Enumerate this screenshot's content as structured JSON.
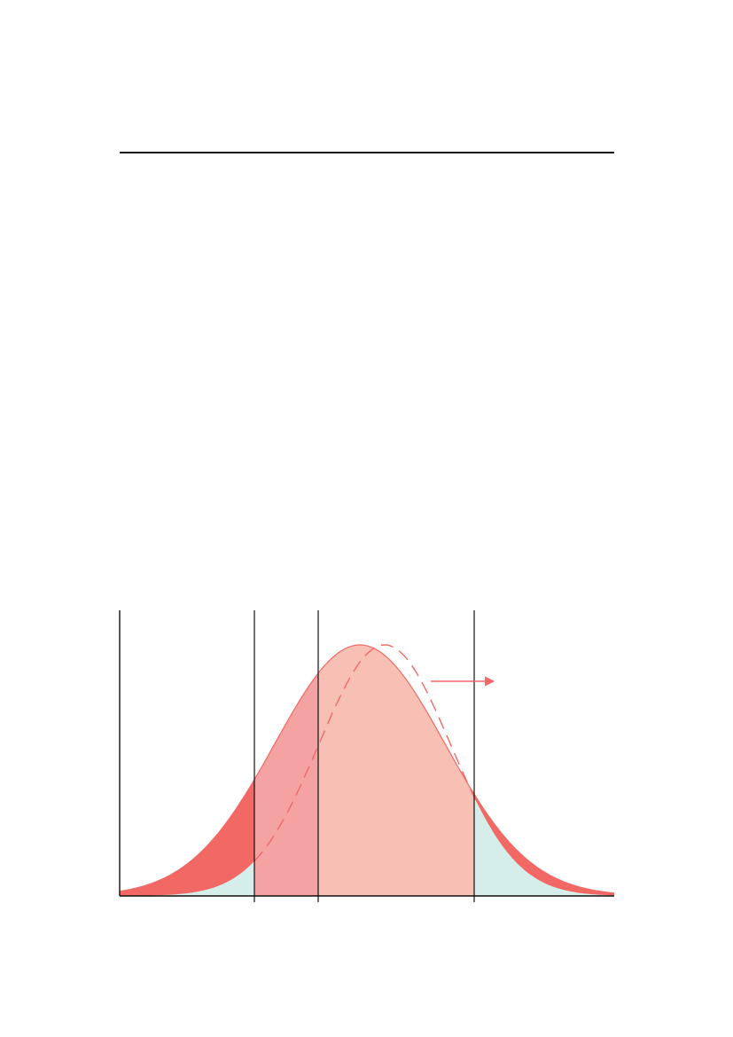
{
  "colors": {
    "rule": "#111111",
    "axis": "#111111",
    "curve_stroke": "#ee6a66",
    "outer_band": "#f26865",
    "left_tail_fill": "#d6eeea",
    "right_tail_fill": "#d6eeea",
    "low_band_fill": "#f4a3a2",
    "middle_fill": "#f8bfb5",
    "shift_arrow": "#ee6a66"
  },
  "distribution": {
    "type": "bell-curve",
    "shifted_curve_style": "dashed",
    "shift_direction": "right"
  }
}
